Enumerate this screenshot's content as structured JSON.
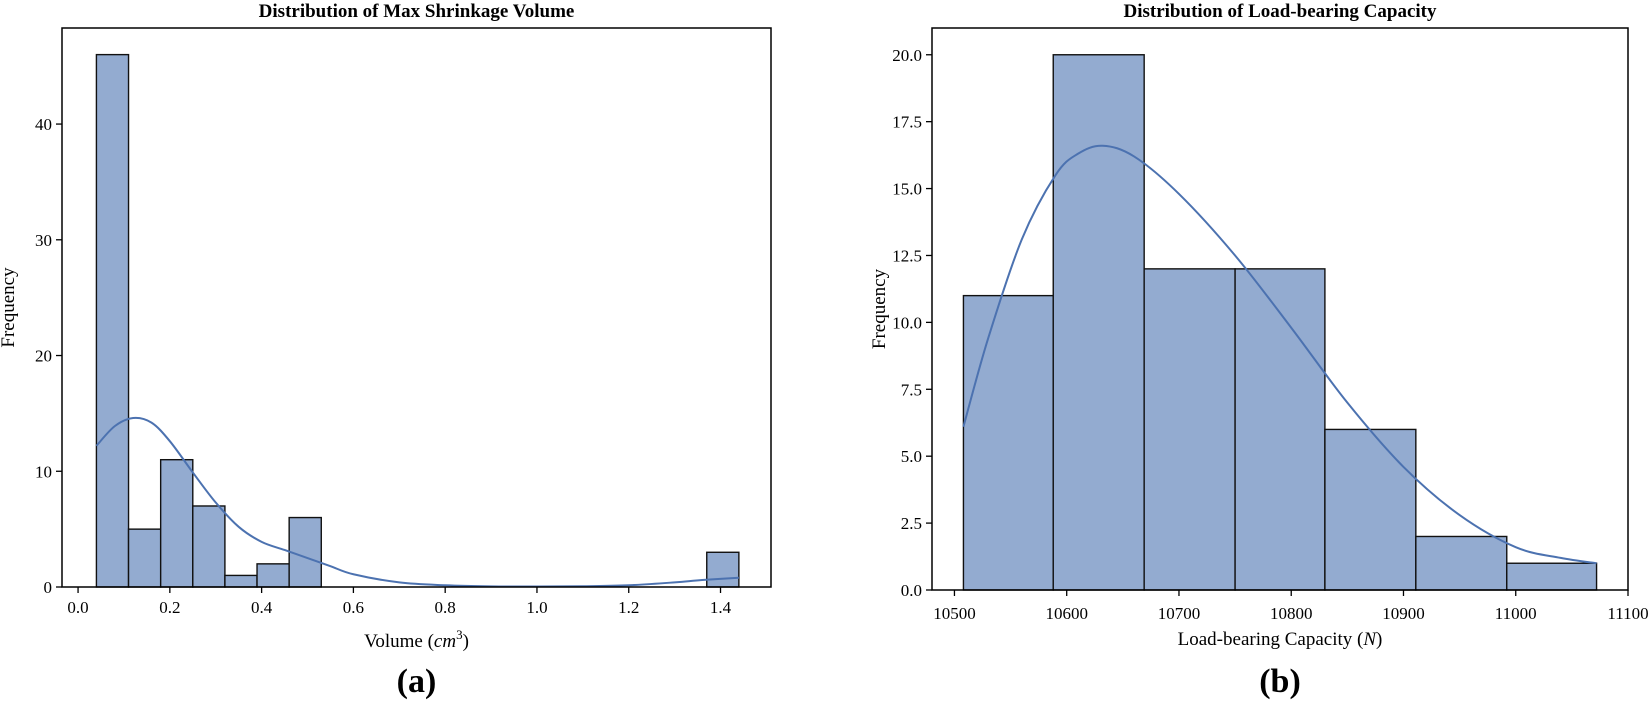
{
  "chart_data": [
    {
      "type": "bar",
      "subtype": "histogram",
      "title": "Distribution of Max Shrinkage Volume",
      "xlabel_prefix": "Volume (",
      "xlabel_unit": "cm",
      "xlabel_sup": "3",
      "xlabel_suffix": ")",
      "ylabel": "Frequency",
      "panel_label": "(a)",
      "xlim": [
        -0.035,
        1.51
      ],
      "ylim": [
        0,
        48.3
      ],
      "xticks": [
        0.0,
        0.2,
        0.4,
        0.6,
        0.8,
        1.0,
        1.2,
        1.4
      ],
      "xtick_labels": [
        "0.0",
        "0.2",
        "0.4",
        "0.6",
        "0.8",
        "1.0",
        "1.2",
        "1.4"
      ],
      "yticks": [
        0,
        10,
        20,
        30,
        40
      ],
      "ytick_labels": [
        "0",
        "10",
        "20",
        "30",
        "40"
      ],
      "bin_edges": [
        0.04,
        0.11,
        0.18,
        0.25,
        0.32,
        0.39,
        0.46,
        0.53,
        0.6,
        0.67,
        0.74,
        0.81,
        0.88,
        0.95,
        1.02,
        1.09,
        1.16,
        1.23,
        1.3,
        1.37,
        1.44
      ],
      "counts": [
        46,
        5,
        11,
        7,
        1,
        2,
        6,
        0,
        0,
        0,
        0,
        0,
        0,
        0,
        0,
        0,
        0,
        0,
        0,
        3
      ],
      "kde": {
        "x": [
          0.04,
          0.08,
          0.12,
          0.16,
          0.2,
          0.25,
          0.3,
          0.35,
          0.4,
          0.45,
          0.5,
          0.55,
          0.6,
          0.7,
          0.8,
          0.9,
          1.0,
          1.1,
          1.2,
          1.3,
          1.36,
          1.44
        ],
        "y": [
          12.2,
          13.9,
          14.6,
          14.2,
          12.6,
          9.9,
          7.3,
          5.2,
          3.9,
          3.2,
          2.5,
          1.8,
          1.1,
          0.4,
          0.15,
          0.05,
          0.04,
          0.06,
          0.15,
          0.4,
          0.6,
          0.8
        ]
      },
      "bar_color": "#93abd0",
      "kde_color": "#4c72b0",
      "grid": false
    },
    {
      "type": "bar",
      "subtype": "histogram",
      "title": "Distribution of Load-bearing Capacity",
      "xlabel_prefix": "Load-bearing Capacity (",
      "xlabel_unit": "N",
      "xlabel_sup": "",
      "xlabel_suffix": ")",
      "ylabel": "Frequency",
      "panel_label": "(b)",
      "xlim": [
        10480,
        11100
      ],
      "ylim": [
        0,
        21.0
      ],
      "xticks": [
        10500,
        10600,
        10700,
        10800,
        10900,
        11000,
        11100
      ],
      "xtick_labels": [
        "10500",
        "10600",
        "10700",
        "10800",
        "10900",
        "11000",
        "11100"
      ],
      "yticks": [
        0,
        2.5,
        5,
        7.5,
        10,
        12.5,
        15,
        17.5,
        20
      ],
      "ytick_labels": [
        "0.0",
        "2.5",
        "5.0",
        "7.5",
        "10.0",
        "12.5",
        "15.0",
        "17.5",
        "20.0"
      ],
      "bin_edges": [
        10508,
        10588,
        10669,
        10750,
        10830,
        10911,
        10992,
        11072
      ],
      "counts": [
        11,
        20,
        12,
        12,
        6,
        2,
        1
      ],
      "kde": {
        "x": [
          10508,
          10530,
          10560,
          10590,
          10610,
          10632,
          10660,
          10700,
          10750,
          10800,
          10850,
          10900,
          10950,
          11000,
          11040,
          11072
        ],
        "y": [
          6.1,
          9.4,
          13.1,
          15.5,
          16.3,
          16.6,
          16.2,
          14.8,
          12.5,
          9.8,
          7.0,
          4.6,
          2.8,
          1.6,
          1.2,
          1.0
        ]
      },
      "bar_color": "#93abd0",
      "kde_color": "#4c72b0",
      "grid": false
    }
  ]
}
